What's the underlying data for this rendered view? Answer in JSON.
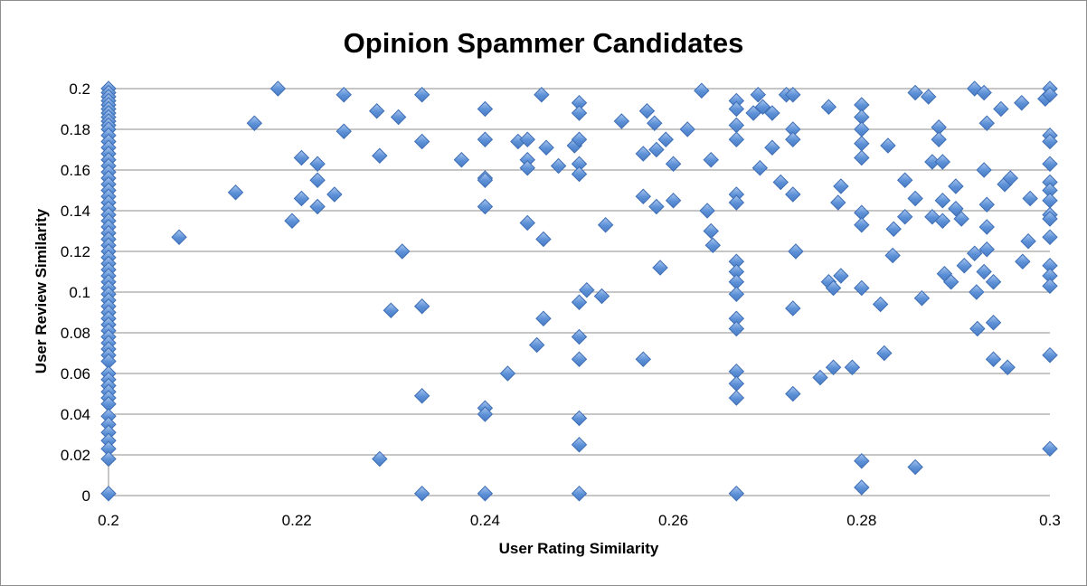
{
  "chart_data": {
    "type": "scatter",
    "title": "Opinion Spammer Candidates",
    "xlabel": "User Rating Similarity",
    "ylabel": "User Review Similarity",
    "xlim": [
      0.2,
      0.3
    ],
    "ylim": [
      0,
      0.2
    ],
    "x_ticks": [
      "0.2",
      "0.22",
      "0.24",
      "0.26",
      "0.28",
      "0.3"
    ],
    "y_ticks": [
      "0",
      "0.02",
      "0.04",
      "0.06",
      "0.08",
      "0.1",
      "0.12",
      "0.14",
      "0.16",
      "0.18",
      "0.2"
    ],
    "grid": "horizontal",
    "legend": "none",
    "marker": "diamond",
    "marker_color": "#5b8fd6",
    "series": [
      {
        "points": [
          [
            0.2,
            0.2
          ],
          [
            0.2,
            0.198
          ],
          [
            0.2,
            0.196
          ],
          [
            0.2,
            0.194
          ],
          [
            0.2,
            0.192
          ],
          [
            0.2,
            0.19
          ],
          [
            0.2,
            0.188
          ],
          [
            0.2,
            0.186
          ],
          [
            0.2,
            0.184
          ],
          [
            0.2,
            0.182
          ],
          [
            0.2,
            0.18
          ],
          [
            0.2,
            0.177
          ],
          [
            0.2,
            0.174
          ],
          [
            0.2,
            0.171
          ],
          [
            0.2,
            0.168
          ],
          [
            0.2,
            0.165
          ],
          [
            0.2,
            0.162
          ],
          [
            0.2,
            0.159
          ],
          [
            0.2,
            0.156
          ],
          [
            0.2,
            0.153
          ],
          [
            0.2,
            0.15
          ],
          [
            0.2,
            0.147
          ],
          [
            0.2,
            0.144
          ],
          [
            0.2,
            0.141
          ],
          [
            0.2,
            0.138
          ],
          [
            0.2,
            0.135
          ],
          [
            0.2,
            0.132
          ],
          [
            0.2,
            0.129
          ],
          [
            0.2,
            0.126
          ],
          [
            0.2,
            0.123
          ],
          [
            0.2,
            0.12
          ],
          [
            0.2,
            0.117
          ],
          [
            0.2,
            0.114
          ],
          [
            0.2,
            0.111
          ],
          [
            0.2,
            0.108
          ],
          [
            0.2,
            0.105
          ],
          [
            0.2,
            0.102
          ],
          [
            0.2,
            0.099
          ],
          [
            0.2,
            0.096
          ],
          [
            0.2,
            0.093
          ],
          [
            0.2,
            0.09
          ],
          [
            0.2,
            0.087
          ],
          [
            0.2,
            0.084
          ],
          [
            0.2,
            0.081
          ],
          [
            0.2,
            0.078
          ],
          [
            0.2,
            0.075
          ],
          [
            0.2,
            0.072
          ],
          [
            0.2,
            0.069
          ],
          [
            0.2,
            0.066
          ],
          [
            0.2,
            0.06
          ],
          [
            0.2,
            0.057
          ],
          [
            0.2,
            0.054
          ],
          [
            0.2,
            0.051
          ],
          [
            0.2,
            0.048
          ],
          [
            0.2,
            0.045
          ],
          [
            0.2,
            0.039
          ],
          [
            0.2,
            0.035
          ],
          [
            0.2,
            0.031
          ],
          [
            0.2,
            0.027
          ],
          [
            0.2,
            0.023
          ],
          [
            0.2,
            0.018
          ],
          [
            0.2,
            0.001
          ],
          [
            0.2075,
            0.127
          ],
          [
            0.2135,
            0.149
          ],
          [
            0.2155,
            0.183
          ],
          [
            0.218,
            0.2
          ],
          [
            0.2195,
            0.135
          ],
          [
            0.2205,
            0.166
          ],
          [
            0.2205,
            0.146
          ],
          [
            0.2222,
            0.163
          ],
          [
            0.2222,
            0.155
          ],
          [
            0.2222,
            0.142
          ],
          [
            0.224,
            0.148
          ],
          [
            0.225,
            0.197
          ],
          [
            0.225,
            0.179
          ],
          [
            0.2285,
            0.189
          ],
          [
            0.2288,
            0.167
          ],
          [
            0.2288,
            0.018
          ],
          [
            0.23,
            0.091
          ],
          [
            0.2308,
            0.186
          ],
          [
            0.2312,
            0.12
          ],
          [
            0.2333,
            0.197
          ],
          [
            0.2333,
            0.174
          ],
          [
            0.2333,
            0.093
          ],
          [
            0.2333,
            0.049
          ],
          [
            0.2333,
            0.001
          ],
          [
            0.2375,
            0.165
          ],
          [
            0.24,
            0.19
          ],
          [
            0.24,
            0.175
          ],
          [
            0.24,
            0.156
          ],
          [
            0.24,
            0.155
          ],
          [
            0.24,
            0.142
          ],
          [
            0.24,
            0.043
          ],
          [
            0.24,
            0.04
          ],
          [
            0.24,
            0.001
          ],
          [
            0.2424,
            0.06
          ],
          [
            0.2435,
            0.174
          ],
          [
            0.2445,
            0.175
          ],
          [
            0.2445,
            0.165
          ],
          [
            0.2445,
            0.161
          ],
          [
            0.2445,
            0.134
          ],
          [
            0.2455,
            0.074
          ],
          [
            0.246,
            0.197
          ],
          [
            0.2462,
            0.087
          ],
          [
            0.2462,
            0.126
          ],
          [
            0.2465,
            0.171
          ],
          [
            0.2478,
            0.162
          ],
          [
            0.2495,
            0.172
          ],
          [
            0.25,
            0.193
          ],
          [
            0.25,
            0.188
          ],
          [
            0.25,
            0.175
          ],
          [
            0.25,
            0.163
          ],
          [
            0.25,
            0.158
          ],
          [
            0.25,
            0.095
          ],
          [
            0.25,
            0.078
          ],
          [
            0.25,
            0.067
          ],
          [
            0.25,
            0.038
          ],
          [
            0.25,
            0.025
          ],
          [
            0.25,
            0.001
          ],
          [
            0.2508,
            0.101
          ],
          [
            0.2524,
            0.098
          ],
          [
            0.2528,
            0.133
          ],
          [
            0.2545,
            0.184
          ],
          [
            0.2568,
            0.168
          ],
          [
            0.2568,
            0.147
          ],
          [
            0.2568,
            0.067
          ],
          [
            0.2572,
            0.189
          ],
          [
            0.258,
            0.183
          ],
          [
            0.2582,
            0.17
          ],
          [
            0.2582,
            0.142
          ],
          [
            0.2586,
            0.112
          ],
          [
            0.2592,
            0.175
          ],
          [
            0.26,
            0.163
          ],
          [
            0.26,
            0.145
          ],
          [
            0.2615,
            0.18
          ],
          [
            0.263,
            0.199
          ],
          [
            0.2636,
            0.14
          ],
          [
            0.264,
            0.165
          ],
          [
            0.264,
            0.13
          ],
          [
            0.2642,
            0.123
          ],
          [
            0.2667,
            0.194
          ],
          [
            0.2667,
            0.19
          ],
          [
            0.2667,
            0.182
          ],
          [
            0.2667,
            0.175
          ],
          [
            0.2667,
            0.148
          ],
          [
            0.2667,
            0.144
          ],
          [
            0.2667,
            0.115
          ],
          [
            0.2667,
            0.11
          ],
          [
            0.2667,
            0.105
          ],
          [
            0.2667,
            0.099
          ],
          [
            0.2667,
            0.087
          ],
          [
            0.2667,
            0.082
          ],
          [
            0.2667,
            0.061
          ],
          [
            0.2667,
            0.055
          ],
          [
            0.2667,
            0.048
          ],
          [
            0.2667,
            0.001
          ],
          [
            0.2685,
            0.188
          ],
          [
            0.269,
            0.197
          ],
          [
            0.2692,
            0.161
          ],
          [
            0.2695,
            0.191
          ],
          [
            0.2705,
            0.188
          ],
          [
            0.2705,
            0.171
          ],
          [
            0.2714,
            0.154
          ],
          [
            0.272,
            0.197
          ],
          [
            0.2727,
            0.197
          ],
          [
            0.2727,
            0.18
          ],
          [
            0.2727,
            0.175
          ],
          [
            0.2727,
            0.148
          ],
          [
            0.2727,
            0.092
          ],
          [
            0.2727,
            0.05
          ],
          [
            0.273,
            0.12
          ],
          [
            0.2756,
            0.058
          ],
          [
            0.2765,
            0.191
          ],
          [
            0.2765,
            0.105
          ],
          [
            0.277,
            0.102
          ],
          [
            0.277,
            0.063
          ],
          [
            0.2775,
            0.144
          ],
          [
            0.2778,
            0.152
          ],
          [
            0.2778,
            0.108
          ],
          [
            0.279,
            0.063
          ],
          [
            0.28,
            0.192
          ],
          [
            0.28,
            0.186
          ],
          [
            0.28,
            0.18
          ],
          [
            0.28,
            0.173
          ],
          [
            0.28,
            0.166
          ],
          [
            0.28,
            0.139
          ],
          [
            0.28,
            0.133
          ],
          [
            0.28,
            0.102
          ],
          [
            0.28,
            0.017
          ],
          [
            0.28,
            0.004
          ],
          [
            0.282,
            0.094
          ],
          [
            0.2824,
            0.07
          ],
          [
            0.2828,
            0.172
          ],
          [
            0.2833,
            0.118
          ],
          [
            0.2834,
            0.131
          ],
          [
            0.2846,
            0.155
          ],
          [
            0.2846,
            0.137
          ],
          [
            0.2857,
            0.198
          ],
          [
            0.2857,
            0.146
          ],
          [
            0.2857,
            0.014
          ],
          [
            0.2864,
            0.097
          ],
          [
            0.2871,
            0.196
          ],
          [
            0.2875,
            0.164
          ],
          [
            0.2875,
            0.137
          ],
          [
            0.2882,
            0.181
          ],
          [
            0.2882,
            0.175
          ],
          [
            0.2886,
            0.164
          ],
          [
            0.2886,
            0.145
          ],
          [
            0.2886,
            0.135
          ],
          [
            0.2888,
            0.109
          ],
          [
            0.2895,
            0.105
          ],
          [
            0.29,
            0.152
          ],
          [
            0.29,
            0.141
          ],
          [
            0.2906,
            0.136
          ],
          [
            0.2909,
            0.113
          ],
          [
            0.292,
            0.2
          ],
          [
            0.292,
            0.119
          ],
          [
            0.2922,
            0.1
          ],
          [
            0.2923,
            0.082
          ],
          [
            0.293,
            0.198
          ],
          [
            0.293,
            0.16
          ],
          [
            0.293,
            0.11
          ],
          [
            0.2933,
            0.183
          ],
          [
            0.2933,
            0.143
          ],
          [
            0.2933,
            0.132
          ],
          [
            0.2933,
            0.121
          ],
          [
            0.294,
            0.105
          ],
          [
            0.294,
            0.085
          ],
          [
            0.294,
            0.067
          ],
          [
            0.2948,
            0.19
          ],
          [
            0.2952,
            0.153
          ],
          [
            0.2955,
            0.063
          ],
          [
            0.2958,
            0.156
          ],
          [
            0.297,
            0.193
          ],
          [
            0.2971,
            0.115
          ],
          [
            0.2977,
            0.125
          ],
          [
            0.2979,
            0.146
          ],
          [
            0.2995,
            0.195
          ],
          [
            0.3,
            0.2
          ],
          [
            0.3,
            0.197
          ],
          [
            0.3,
            0.177
          ],
          [
            0.3,
            0.174
          ],
          [
            0.3,
            0.163
          ],
          [
            0.3,
            0.154
          ],
          [
            0.3,
            0.15
          ],
          [
            0.3,
            0.145
          ],
          [
            0.3,
            0.138
          ],
          [
            0.3,
            0.136
          ],
          [
            0.3,
            0.127
          ],
          [
            0.3,
            0.113
          ],
          [
            0.3,
            0.108
          ],
          [
            0.3,
            0.103
          ],
          [
            0.3,
            0.069
          ],
          [
            0.3,
            0.023
          ]
        ]
      }
    ]
  }
}
